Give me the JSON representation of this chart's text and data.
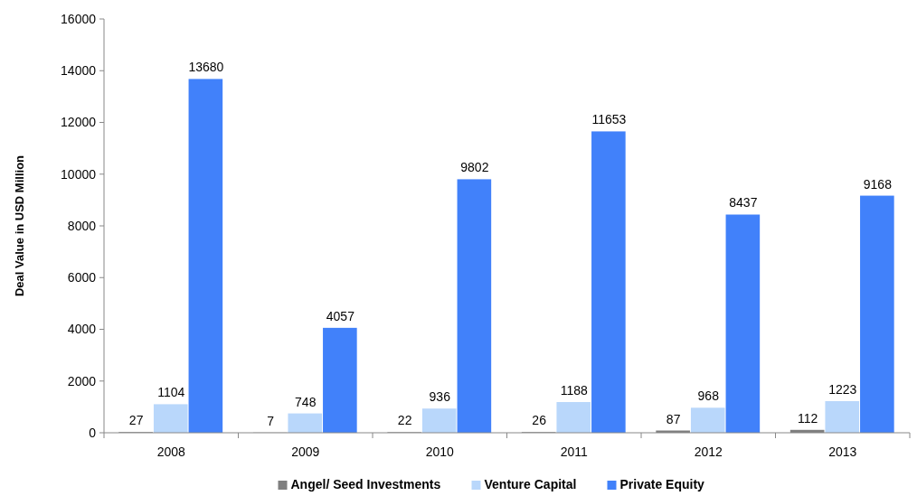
{
  "chart_data": {
    "type": "bar",
    "ylabel": "Deal Value in USD Million",
    "categories": [
      "2008",
      "2009",
      "2010",
      "2011",
      "2012",
      "2013"
    ],
    "series": [
      {
        "name": "Angel/ Seed Investments",
        "color": "#7f7f7f",
        "values": [
          27,
          7,
          22,
          26,
          87,
          112
        ]
      },
      {
        "name": "Venture Capital",
        "color": "#b9d7fb",
        "values": [
          1104,
          748,
          936,
          1188,
          968,
          1223
        ]
      },
      {
        "name": "Private Equity",
        "color": "#4181fa",
        "values": [
          13680,
          4057,
          9802,
          11653,
          8437,
          9168
        ]
      }
    ],
    "ylim": [
      0,
      16000
    ],
    "yticks": [
      0,
      2000,
      4000,
      6000,
      8000,
      10000,
      12000,
      14000,
      16000
    ],
    "data_labels": true,
    "grid": false,
    "legend": "bottom"
  }
}
